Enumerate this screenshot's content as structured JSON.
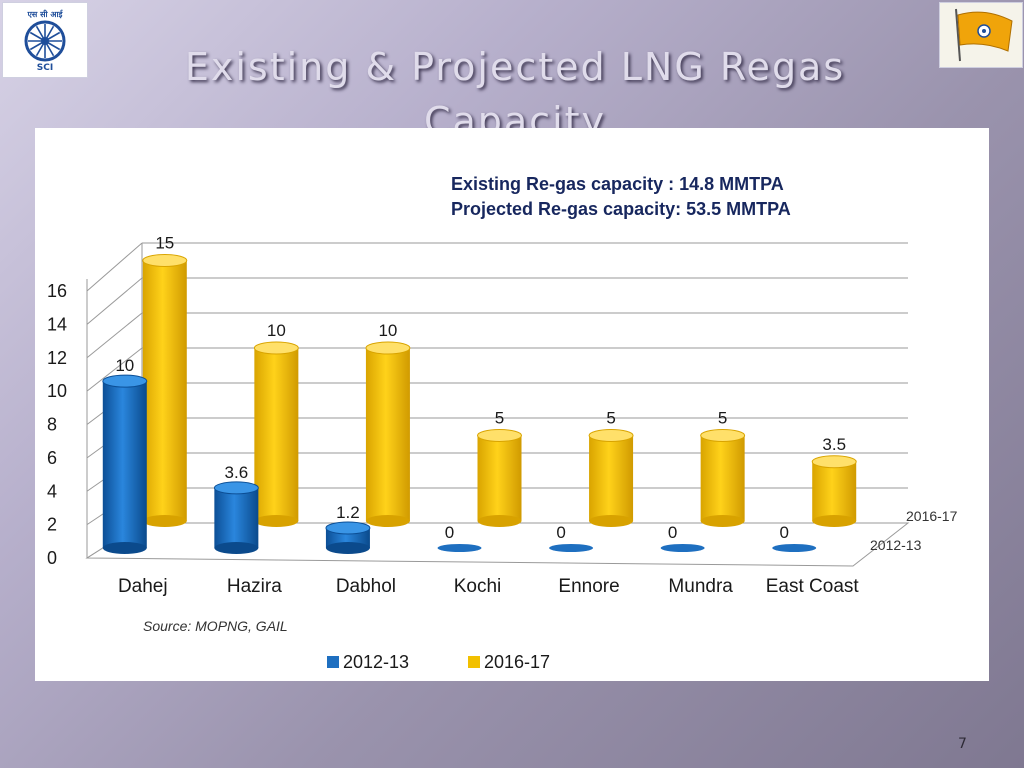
{
  "slide": {
    "title": "Existing & Projected LNG Regas Capacity",
    "page_number": "7",
    "logo_text": "एस सी आई",
    "logo_label": "SCI"
  },
  "chart_data": {
    "type": "bar",
    "annotation_lines": [
      "Existing  Re-gas capacity  : 14.8 MMTPA",
      "Projected Re-gas capacity: 53.5 MMTPA"
    ],
    "categories": [
      "Dahej",
      "Hazira",
      "Dabhol",
      "Kochi",
      "Ennore",
      "Mundra",
      "East Coast"
    ],
    "series": [
      {
        "name": "2012-13",
        "values": [
          10,
          3.6,
          1.2,
          0,
          0,
          0,
          0
        ],
        "labels": [
          "10",
          "3.6",
          "1.2",
          "0",
          "0",
          "0",
          "0"
        ],
        "color": "#1e6fc0"
      },
      {
        "name": "2016-17",
        "values": [
          15,
          10,
          10,
          5,
          5,
          5,
          3.5
        ],
        "labels": [
          "15",
          "10",
          "10",
          "5",
          "5",
          "5",
          "3.5"
        ],
        "color": "#f2c000"
      }
    ],
    "y_ticks": [
      "0",
      "2",
      "4",
      "6",
      "8",
      "10",
      "12",
      "14",
      "16"
    ],
    "ylim": [
      0,
      16
    ],
    "source": "Source: MOPNG, GAIL",
    "grid": true,
    "legend_placement": "bottom"
  }
}
